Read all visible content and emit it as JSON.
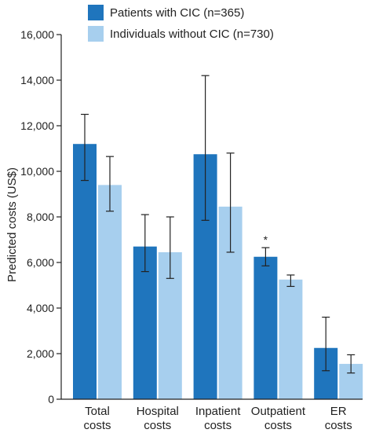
{
  "chart_data": {
    "type": "bar",
    "title": "",
    "xlabel": "",
    "ylabel": "Predicted costs (US$)",
    "ylim": [
      0,
      16000
    ],
    "yticks": [
      0,
      2000,
      4000,
      6000,
      8000,
      10000,
      12000,
      14000,
      16000
    ],
    "ytick_labels": [
      "0",
      "2,000",
      "4,000",
      "6,000",
      "8,000",
      "10,000",
      "12,000",
      "14,000",
      "16,000"
    ],
    "categories": [
      [
        "Total",
        "costs"
      ],
      [
        "Hospital",
        "costs"
      ],
      [
        "Inpatient",
        "costs"
      ],
      [
        "Outpatient",
        "costs"
      ],
      [
        "ER",
        "costs"
      ]
    ],
    "grid": false,
    "legend_position": "top-left",
    "series": [
      {
        "name": "Patients with CIC (n=365)",
        "color": "#1f75bd",
        "values": [
          11200,
          6700,
          10750,
          6250,
          2250
        ],
        "error_low": [
          9600,
          5600,
          7850,
          5850,
          1250
        ],
        "error_high": [
          12500,
          8100,
          14200,
          6650,
          3600
        ]
      },
      {
        "name": "Individuals without CIC (n=730)",
        "color": "#a7cfee",
        "values": [
          9400,
          6450,
          8450,
          5250,
          1550
        ],
        "error_low": [
          8250,
          5300,
          6450,
          4950,
          1150
        ],
        "error_high": [
          10650,
          8000,
          10800,
          5450,
          1950
        ]
      }
    ],
    "annotations": [
      {
        "text": "*",
        "category_index": 3,
        "series_index": 0
      }
    ]
  }
}
